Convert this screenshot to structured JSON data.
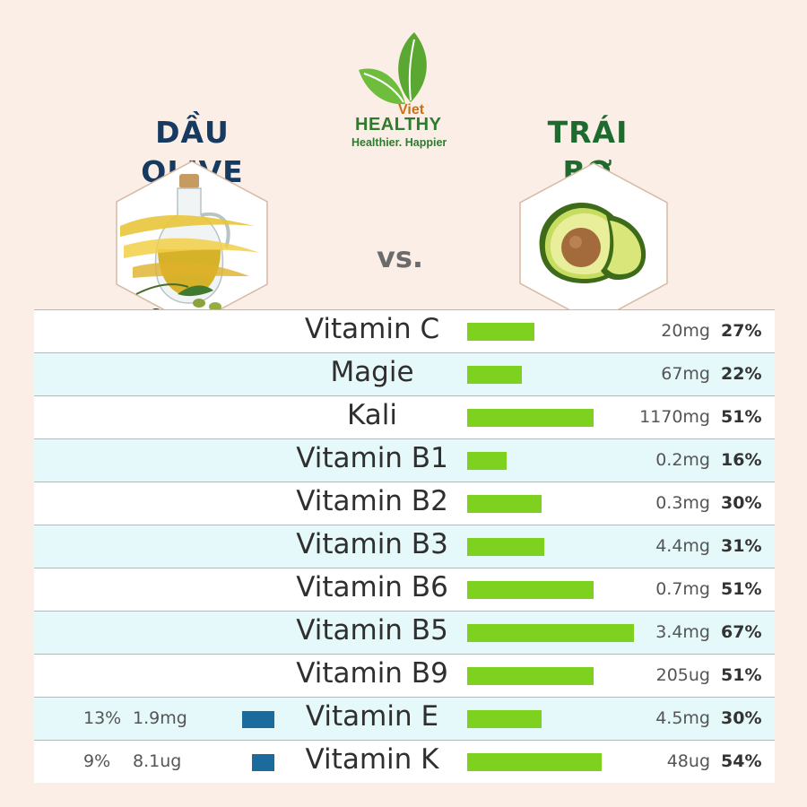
{
  "header": {
    "left_title": "DẦU OLIVE",
    "right_title": "TRÁI BƠ",
    "vs_label": "vs.",
    "logo": {
      "top": "Viet",
      "name": "HEALTHY",
      "tagline": "Healthier. Happier"
    }
  },
  "colors": {
    "background": "#fbeee6",
    "avocado_bar": "#7ed21f",
    "olive_bar": "#1b6b9c",
    "left_title": "#163a60",
    "right_title": "#1f6b2f",
    "row_alt": "#e5f8fa"
  },
  "chart_data": {
    "type": "bar",
    "categories": [
      "Vitamin C",
      "Magie",
      "Kali",
      "Vitamin B1",
      "Vitamin B2",
      "Vitamin B3",
      "Vitamin B6",
      "Vitamin B5",
      "Vitamin B9",
      "Vitamin E",
      "Vitamin K"
    ],
    "series": [
      {
        "name": "DẦU OLIVE",
        "amounts": [
          "",
          "",
          "",
          "",
          "",
          "",
          "",
          "",
          "",
          "1.9mg",
          "8.1ug"
        ],
        "percent_labels": [
          "",
          "",
          "",
          "",
          "",
          "",
          "",
          "",
          "",
          "13%",
          "9%"
        ],
        "values": [
          null,
          null,
          null,
          null,
          null,
          null,
          null,
          null,
          null,
          13,
          9
        ]
      },
      {
        "name": "TRÁI BƠ",
        "amounts": [
          "20mg",
          "67mg",
          "1170mg",
          "0.2mg",
          "0.3mg",
          "4.4mg",
          "0.7mg",
          "3.4mg",
          "205ug",
          "4.5mg",
          "48ug"
        ],
        "percent_labels": [
          "27%",
          "22%",
          "51%",
          "16%",
          "30%",
          "31%",
          "51%",
          "67%",
          "51%",
          "30%",
          "54%"
        ],
        "values": [
          27,
          22,
          51,
          16,
          30,
          31,
          51,
          67,
          51,
          30,
          54
        ]
      }
    ]
  }
}
